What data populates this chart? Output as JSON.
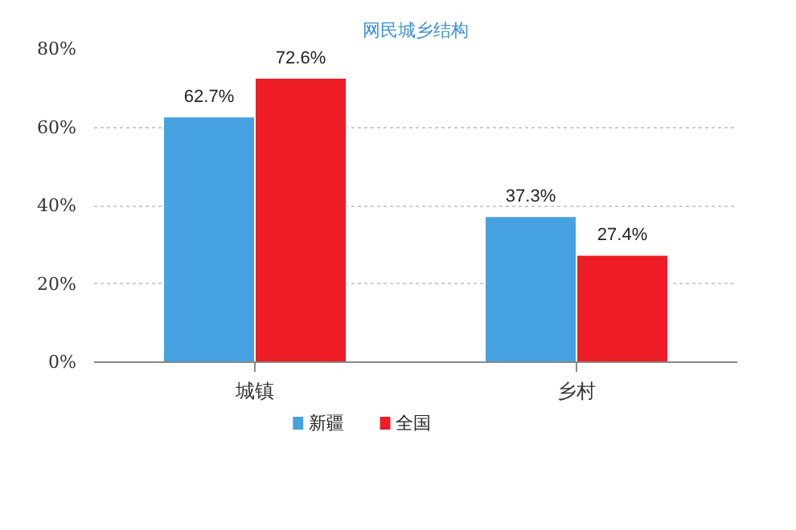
{
  "chart_data": {
    "type": "bar",
    "title": "网民城乡结构",
    "categories": [
      "城镇",
      "乡村"
    ],
    "series": [
      {
        "name": "新疆",
        "color": "#45a1e0",
        "values": [
          62.7,
          37.3
        ],
        "value_labels": [
          "62.7%",
          "37.3%"
        ]
      },
      {
        "name": "全国",
        "color": "#ee1c25",
        "values": [
          72.6,
          27.4
        ],
        "value_labels": [
          "72.6%",
          "27.4%"
        ]
      }
    ],
    "ylim": [
      0,
      80
    ],
    "yticks": [
      {
        "value": 0,
        "label": "0%"
      },
      {
        "value": 20,
        "label": "20%"
      },
      {
        "value": 40,
        "label": "40%"
      },
      {
        "value": 60,
        "label": "60%"
      },
      {
        "value": 80,
        "label": "80%"
      }
    ],
    "grid": "y",
    "legend": "bottom"
  }
}
